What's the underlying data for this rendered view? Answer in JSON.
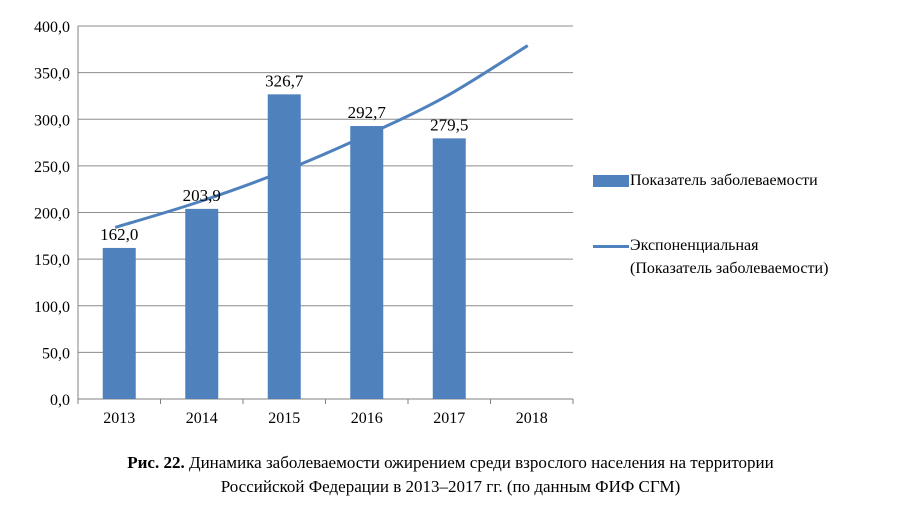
{
  "chart_data": {
    "type": "bar",
    "categories": [
      "2013",
      "2014",
      "2015",
      "2016",
      "2017",
      "2018"
    ],
    "series": [
      {
        "name": "Показатель заболеваемости",
        "type": "bar",
        "values": [
          162.0,
          203.9,
          326.7,
          292.7,
          279.5,
          null
        ],
        "data_labels": [
          "162,0",
          "203,9",
          "326,7",
          "292,7",
          "279,5",
          ""
        ]
      },
      {
        "name": "Экспоненциальная (Показатель заболеваемости)",
        "type": "line",
        "values": [
          184,
          211,
          243,
          281,
          324,
          379
        ]
      }
    ],
    "y_ticks": [
      "0,0",
      "50,0",
      "100,0",
      "150,0",
      "200,0",
      "250,0",
      "300,0",
      "350,0",
      "400,0"
    ],
    "ylim": [
      0,
      400
    ],
    "grid": true,
    "legend": "right",
    "color": "#4f81bd"
  },
  "legend": {
    "bar_label": "Показатель заболеваемости",
    "line_label_1": "Экспоненциальная",
    "line_label_2": "(Показатель заболеваемости)"
  },
  "caption": {
    "prefix": "Рис. 22.",
    "line1": " Динамика заболеваемости ожирением среди взрослого населения на территории",
    "line2": "Российской Федерации в 2013–2017 гг. (по данным ФИФ СГМ)"
  }
}
